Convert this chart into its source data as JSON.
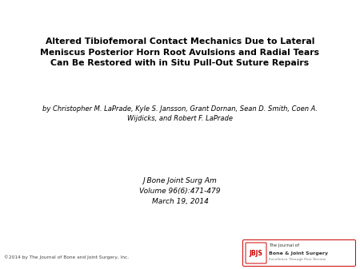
{
  "background_color": "#ffffff",
  "title_line1": "Altered Tibiofemoral Contact Mechanics Due to Lateral",
  "title_line2": "Meniscus Posterior Horn Root Avulsions and Radial Tears",
  "title_line3": "Can Be Restored with in Situ Pull-Out Suture Repairs",
  "authors_line1": "by Christopher M. LaPrade, Kyle S. Jansson, Grant Dornan, Sean D. Smith, Coen A.",
  "authors_line2": "Wijdicks, and Robert F. LaPrade",
  "journal_line1": "J Bone Joint Surg Am",
  "journal_line2": "Volume 96(6):471-479",
  "journal_line3": "March 19, 2014",
  "copyright_text": "©2014 by The Journal of Bone and Joint Surgery, Inc.",
  "logo_text1": "The Journal of",
  "logo_text2": "Bone & Joint Surgery",
  "logo_text3": "Excellence Through Peer Review",
  "logo_abbrev": "JBJS",
  "logo_color": "#cc0000",
  "title_fontsize": 7.8,
  "authors_fontsize": 6.0,
  "journal_fontsize": 6.5,
  "copyright_fontsize": 4.2,
  "logo_fontsize": 4.5
}
